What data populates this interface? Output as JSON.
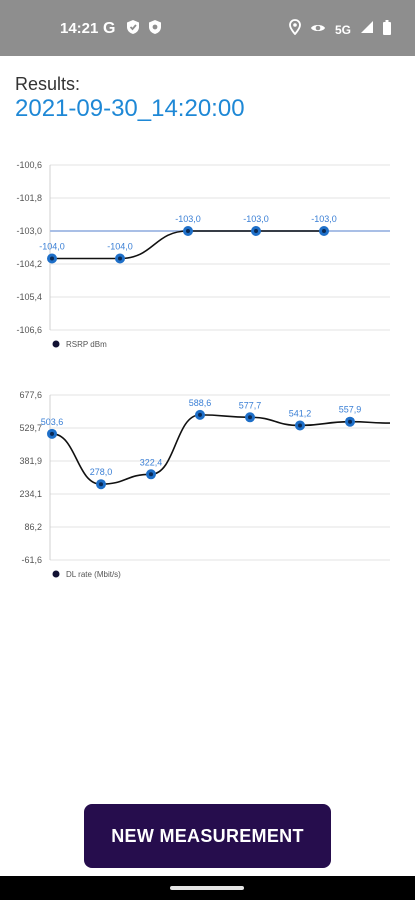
{
  "status_bar": {
    "time": "14:21",
    "left_icons": [
      "google-icon",
      "shield-icon",
      "shield-icon"
    ],
    "network": "5G",
    "right_icons": [
      "location-icon",
      "eye-icon",
      "signal-icon",
      "battery-icon"
    ]
  },
  "results": {
    "label": "Results:",
    "timestamp": "2021-09-30_14:20:00"
  },
  "colors": {
    "accent": "#1e88d6",
    "point": "#1e6fc8",
    "button": "#260d4d",
    "status_bar": "#8e8e8e"
  },
  "chart_data": [
    {
      "type": "line",
      "yticks": [
        "-100,6",
        "-101,8",
        "-103,0",
        "-104,2",
        "-105,4",
        "-106,6"
      ],
      "ylim": [
        -106.6,
        -100.6
      ],
      "reference_line": -103.0,
      "values": [
        -104.0,
        -104.0,
        -103.0,
        -103.0,
        -103.0
      ],
      "data_labels": [
        "-104,0",
        "-104,0",
        "-103,0",
        "-103,0",
        "-103,0"
      ],
      "series": [
        {
          "name": "RSRP dBm",
          "values": [
            -104.0,
            -104.0,
            -103.0,
            -103.0,
            -103.0
          ]
        }
      ],
      "legend": "RSRP dBm",
      "legend_position": "bottom-left",
      "grid": true
    },
    {
      "type": "line",
      "yticks": [
        "677,6",
        "529,7",
        "381,9",
        "234,1",
        "86,2",
        "-61,6"
      ],
      "ylim": [
        -61.6,
        677.6
      ],
      "values": [
        503.6,
        278.0,
        322.4,
        588.6,
        577.7,
        541.2,
        557.9
      ],
      "data_labels": [
        "503,6",
        "278,0",
        "322,4",
        "588,6",
        "577,7",
        "541,2",
        "557,9"
      ],
      "series": [
        {
          "name": "DL rate (Mbit/s)",
          "values": [
            503.6,
            278.0,
            322.4,
            588.6,
            577.7,
            541.2,
            557.9
          ]
        }
      ],
      "legend": "DL rate (Mbit/s)",
      "legend_position": "bottom-left",
      "grid": true
    }
  ],
  "button": {
    "label": "NEW MEASUREMENT"
  }
}
